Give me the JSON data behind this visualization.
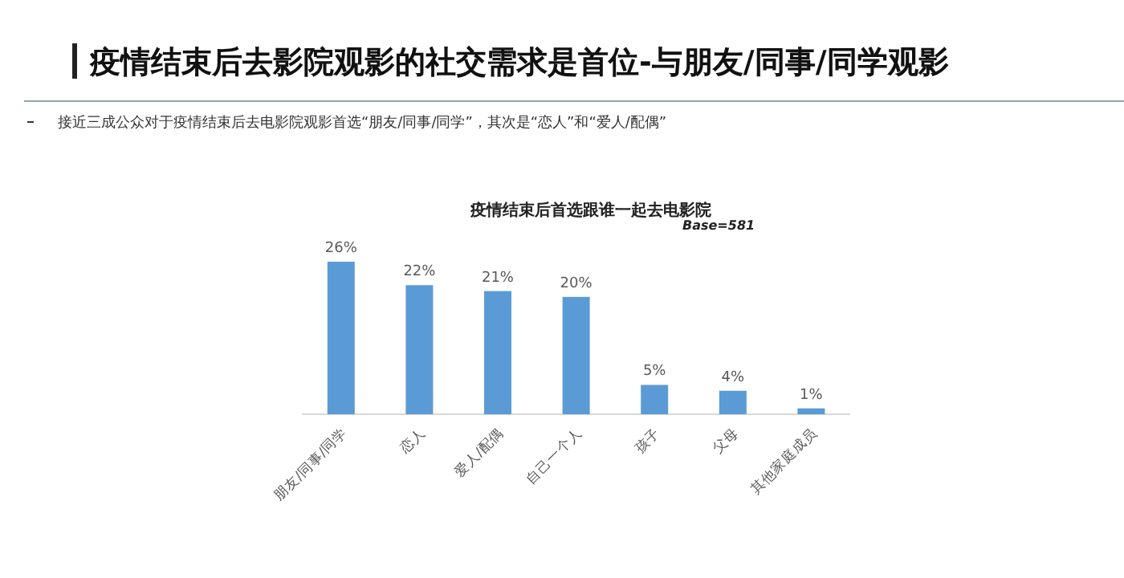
{
  "chart_data": {
    "type": "bar",
    "title": "疫情结束后去影院观影的社交需求是首位-与朋友/同事/同学观影",
    "subtitle": "疫情结束后首选跟谁一起去电影院",
    "annotations": [
      "接近三成公众对于疫情结束后去电影院观影首选“朋友/同事/同学”，其次是“恋人”和“爱人/配偶”",
      "Base=581"
    ],
    "categories": [
      "朋友/同事/同学",
      "恋人",
      "爱人/配偶",
      "自己一个人",
      "孩子",
      "父母",
      "其他家庭成员"
    ],
    "values": [
      26,
      22,
      21,
      20,
      5,
      4,
      1
    ],
    "value_labels": [
      "26%",
      "22%",
      "21%",
      "20%",
      "5%",
      "4%",
      "1%"
    ],
    "color": "#5b9bd5"
  }
}
